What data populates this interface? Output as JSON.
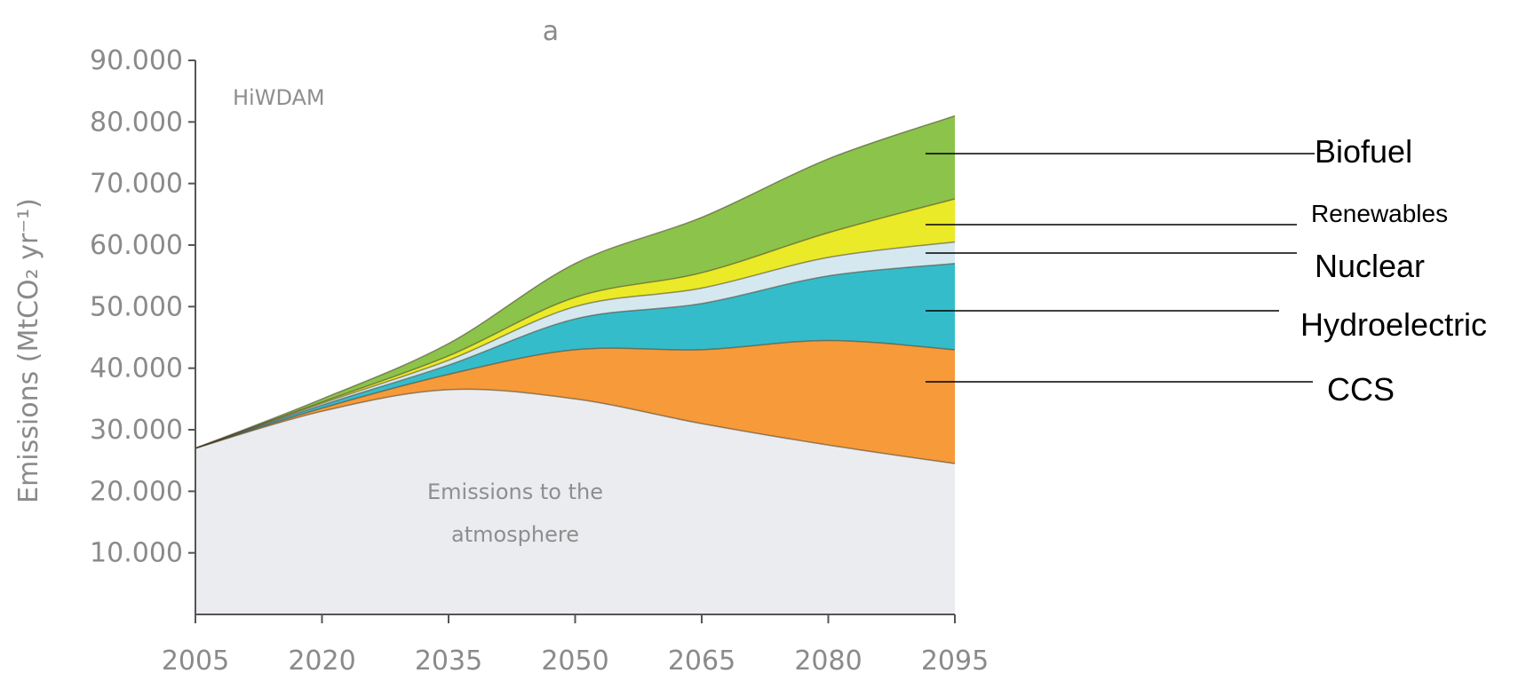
{
  "chart_data": {
    "type": "area",
    "stacked": true,
    "panel_letter": "a",
    "model_label": "HiWDAM",
    "ylabel": "Emissions (MtCO₂ yr⁻¹)",
    "xlabel": "",
    "x": [
      2005,
      2020,
      2035,
      2050,
      2065,
      2080,
      2095
    ],
    "x_tick_labels": [
      "2005",
      "2020",
      "2035",
      "2050",
      "2065",
      "2080",
      "2095"
    ],
    "y_ticks": [
      10000,
      20000,
      30000,
      40000,
      50000,
      60000,
      70000,
      80000,
      90000
    ],
    "y_tick_labels": [
      "10.000",
      "20.000",
      "30.000",
      "40.000",
      "50.000",
      "60.000",
      "70.000",
      "80.000",
      "90.000"
    ],
    "ylim": [
      0,
      90000
    ],
    "xlim": [
      2005,
      2095
    ],
    "grid": false,
    "base_annotation": [
      "Emissions to the",
      "atmosphere"
    ],
    "series": [
      {
        "key": "atmosphere",
        "color": "#eaecef",
        "values": [
          27000,
          33000,
          36500,
          35000,
          31000,
          27500,
          24500
        ]
      },
      {
        "key": "ccs",
        "name": "CCS",
        "color": "#f79a3a",
        "values": [
          0,
          500,
          2500,
          8000,
          12000,
          17000,
          18500
        ]
      },
      {
        "key": "hydro",
        "name": "Hydroelectric",
        "color": "#35bccb",
        "values": [
          0,
          500,
          1500,
          5000,
          7500,
          10500,
          14000
        ]
      },
      {
        "key": "nuclear",
        "name": "Nuclear",
        "color": "#d6e8ef",
        "values": [
          0,
          300,
          800,
          2000,
          2500,
          3000,
          3500
        ]
      },
      {
        "key": "renewables",
        "name": "Renewables",
        "color": "#eaea28",
        "values": [
          0,
          200,
          700,
          1500,
          2500,
          4000,
          7000
        ]
      },
      {
        "key": "biofuel",
        "name": "Biofuel",
        "color": "#8cc34a",
        "values": [
          0,
          500,
          2000,
          5500,
          9000,
          12000,
          13500
        ]
      }
    ],
    "legend_labels": [
      "Biofuel",
      "Renewables",
      "Nuclear",
      "Hydroelectric",
      "CCS"
    ]
  }
}
